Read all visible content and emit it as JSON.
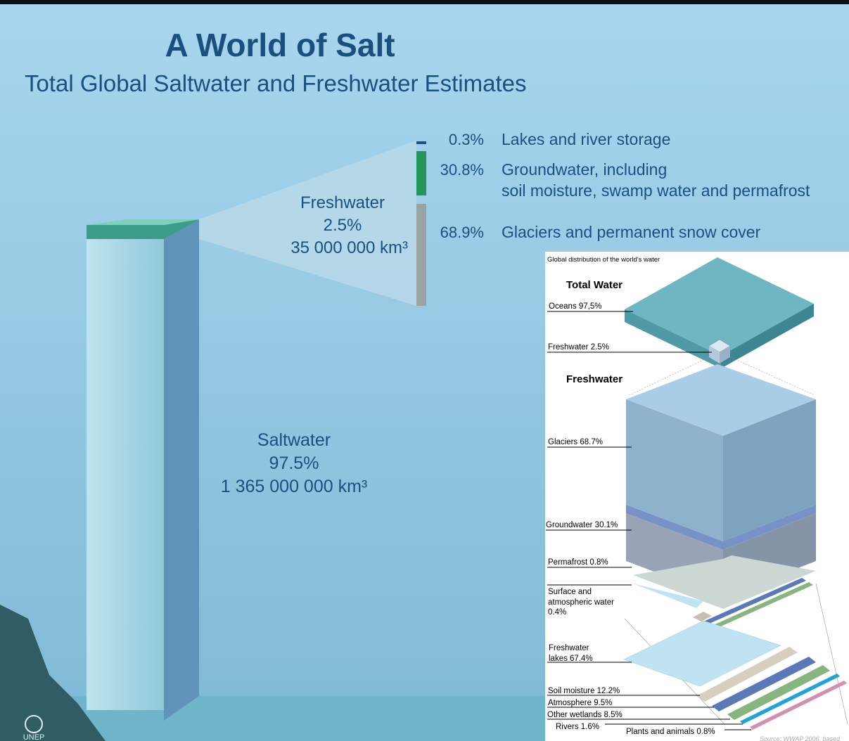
{
  "left": {
    "title": "A World of Salt",
    "subtitle": "Total Global Saltwater and Freshwater Estimates",
    "freshwater": {
      "name": "Freshwater",
      "percent": "2.5%",
      "volume": "35 000 000 km³"
    },
    "breakdown": [
      {
        "percent": "0.3%",
        "lines": [
          "Lakes and river storage"
        ]
      },
      {
        "percent": "30.8%",
        "lines": [
          "Groundwater, including",
          "soil moisture, swamp water and permafrost"
        ]
      },
      {
        "percent": "68.9%",
        "lines": [
          "Glaciers and permanent  snow cover"
        ]
      }
    ],
    "saltwater": {
      "name": "Saltwater",
      "percent": "97.5%",
      "volume": "1 365 000 000 km³"
    },
    "logo": "UNEP"
  },
  "right": {
    "heading": "Global distribution of the world's water",
    "total_heading": "Total Water",
    "oceans": "Oceans  97,5%",
    "freshwater_share": "Freshwater 2.5%",
    "freshwater_heading": "Freshwater",
    "glaciers": "Glaciers 68.7%",
    "groundwater": "Groundwater 30.1%",
    "permafrost": "Permafrost 0.8%",
    "surface": [
      "Surface and",
      "atmospheric water",
      "0.4%"
    ],
    "lakes": [
      "Freshwater",
      "lakes 67.4%"
    ],
    "soil": "Soil moisture 12.2%",
    "atmosphere": "Atmosphere 9.5%",
    "wetlands": "Other wetlands 8.5%",
    "rivers": "Rivers 1.6%",
    "plants": "Plants and animals 0.8%",
    "source": "Source: WWAP 2006, based"
  }
}
